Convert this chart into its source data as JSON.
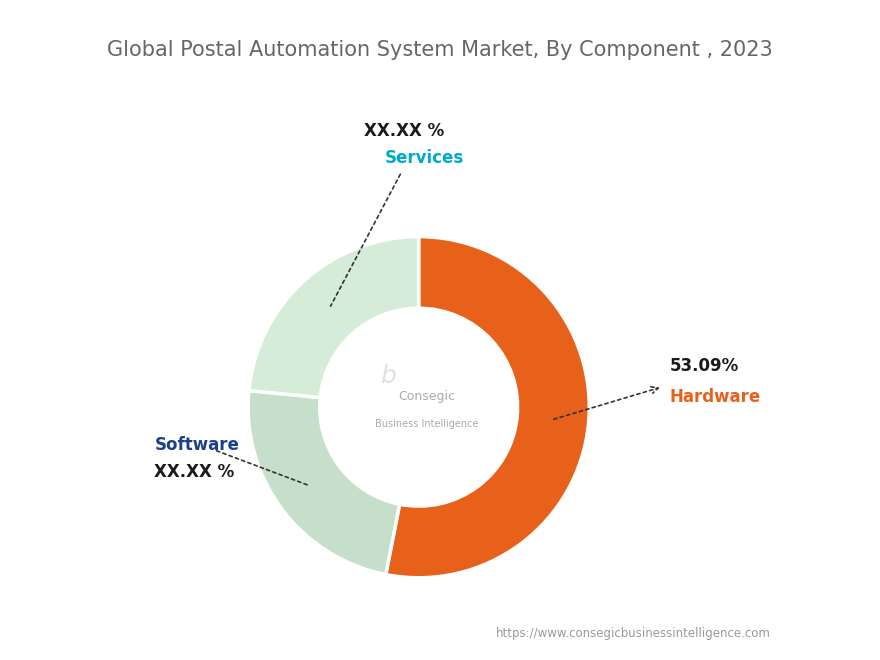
{
  "title": "Global Postal Automation System Market, By Component , 2023",
  "segments": [
    {
      "label": "Hardware",
      "value": 53.09,
      "color": "#E8611A",
      "display_pct": "53.09%"
    },
    {
      "label": "Software",
      "value": 23.46,
      "color": "#C5DFCA",
      "display_pct": "XX.XX %"
    },
    {
      "label": "Services",
      "value": 23.45,
      "color": "#D5ECD9",
      "display_pct": "XX.XX %"
    }
  ],
  "background_color": "#FFFFFF",
  "title_color": "#666666",
  "title_fontsize": 15,
  "annotation_hardware_pct_color": "#1a1a1a",
  "annotation_hardware_label_color": "#E8611A",
  "annotation_software_pct_color": "#1a1a1a",
  "annotation_software_label_color": "#1B3F8B",
  "annotation_services_pct_color": "#1a1a1a",
  "annotation_services_label_color": "#00AACC",
  "watermark": "https://www.consegicbusinessintelligence.com",
  "watermark_color": "#999999",
  "center_text1": "Consegic",
  "center_text2": "Business Intelligence",
  "center_text_color": "#AAAAAA"
}
